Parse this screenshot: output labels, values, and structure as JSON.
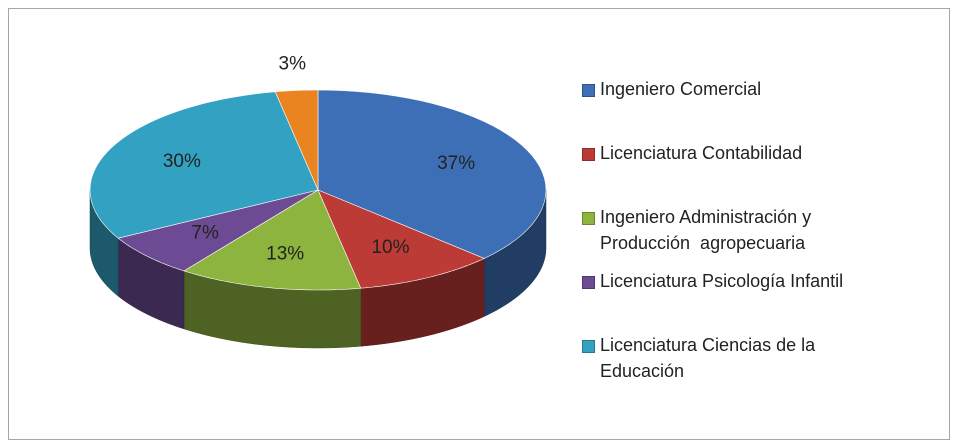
{
  "chart_data": {
    "type": "pie",
    "categories": [
      "Ingeniero Comercial",
      "Licenciatura Contabilidad",
      "Ingeniero Administración y Producción  agropecuaria",
      "Licenciatura Psicología Infantil",
      "Licenciatura Ciencias de la Educación",
      null
    ],
    "values": [
      37,
      10,
      13,
      7,
      30,
      3
    ],
    "value_labels": [
      "37%",
      "10%",
      "13%",
      "7%",
      "30%",
      "3%"
    ],
    "colors": [
      "#3d6fb6",
      "#bd3b37",
      "#8db43f",
      "#6c4a94",
      "#33a2c2",
      "#ea8420"
    ],
    "legend": "right"
  }
}
